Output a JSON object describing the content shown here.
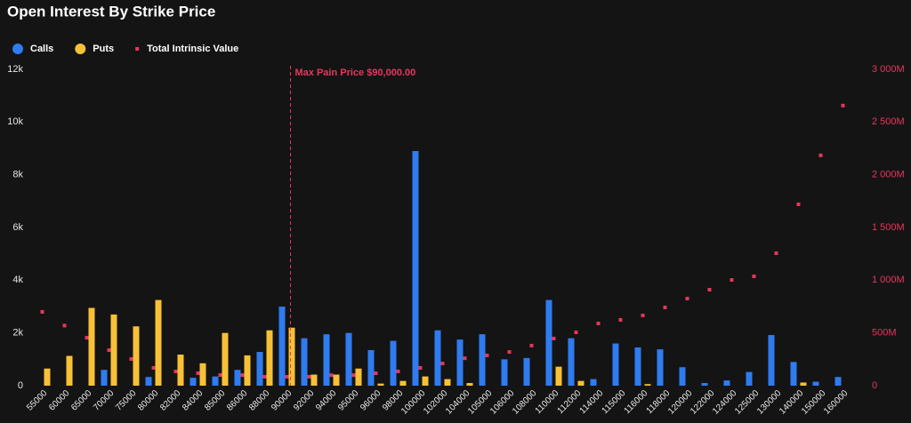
{
  "chart_data": {
    "type": "bar",
    "title": "Open Interest By Strike Price",
    "categories": [
      "55000",
      "60000",
      "65000",
      "70000",
      "75000",
      "80000",
      "82000",
      "84000",
      "85000",
      "86000",
      "88000",
      "90000",
      "92000",
      "94000",
      "95000",
      "96000",
      "98000",
      "100000",
      "102000",
      "104000",
      "105000",
      "106000",
      "108000",
      "110000",
      "112000",
      "114000",
      "115000",
      "116000",
      "118000",
      "120000",
      "122000",
      "124000",
      "125000",
      "130000",
      "140000",
      "150000",
      "160000"
    ],
    "series": [
      {
        "name": "Calls",
        "type": "bar",
        "color": "#2f7bf0",
        "values": [
          0,
          0,
          0,
          600,
          0,
          330,
          0,
          300,
          350,
          600,
          1280,
          3000,
          1800,
          1950,
          2000,
          1350,
          1700,
          8900,
          2100,
          1750,
          1950,
          1000,
          1050,
          3250,
          1800,
          250,
          1600,
          1450,
          1380,
          700,
          100,
          200,
          520,
          1920,
          900,
          150,
          330
        ]
      },
      {
        "name": "Puts",
        "type": "bar",
        "color": "#f7c137",
        "values": [
          650,
          1130,
          2950,
          2700,
          2250,
          3250,
          1180,
          850,
          2000,
          1150,
          2100,
          2200,
          420,
          420,
          650,
          80,
          180,
          350,
          250,
          100,
          0,
          0,
          0,
          720,
          180,
          0,
          0,
          60,
          0,
          0,
          0,
          0,
          0,
          0,
          120,
          0,
          0
        ]
      },
      {
        "name": "Total Intrinsic Value",
        "type": "scatter",
        "axis": "y2",
        "color": "#e8365d",
        "values": [
          700,
          570,
          455,
          337,
          253,
          169,
          135,
          118,
          101,
          100,
          85,
          85,
          85,
          100,
          100,
          118,
          135,
          169,
          210,
          260,
          287,
          320,
          380,
          447,
          506,
          590,
          624,
          666,
          742,
          826,
          910,
          1003,
          1037,
          1256,
          1720,
          2184,
          2656
        ]
      }
    ],
    "ylim": [
      0,
      12000
    ],
    "yticks": [
      0,
      {
        "value": 2000,
        "label": "2k"
      },
      {
        "value": 4000,
        "label": "4k"
      },
      {
        "value": 6000,
        "label": "6k"
      },
      {
        "value": 8000,
        "label": "8k"
      },
      {
        "value": 10000,
        "label": "10k"
      },
      {
        "value": 12000,
        "label": "12k"
      }
    ],
    "y2lim": [
      0,
      3000
    ],
    "y2ticks": [
      0,
      {
        "value": 500,
        "label": "500M"
      },
      {
        "value": 1000,
        "label": "1 000M"
      },
      {
        "value": 1500,
        "label": "1 500M"
      },
      {
        "value": 2000,
        "label": "2 000M"
      },
      {
        "value": 2500,
        "label": "2 500M"
      },
      {
        "value": 3000,
        "label": "3 000M"
      }
    ],
    "annotation": {
      "text": "Max Pain Price $90,000.00",
      "x": "90000",
      "color": "#e8365d"
    },
    "grid": false,
    "legend": "top-left"
  }
}
